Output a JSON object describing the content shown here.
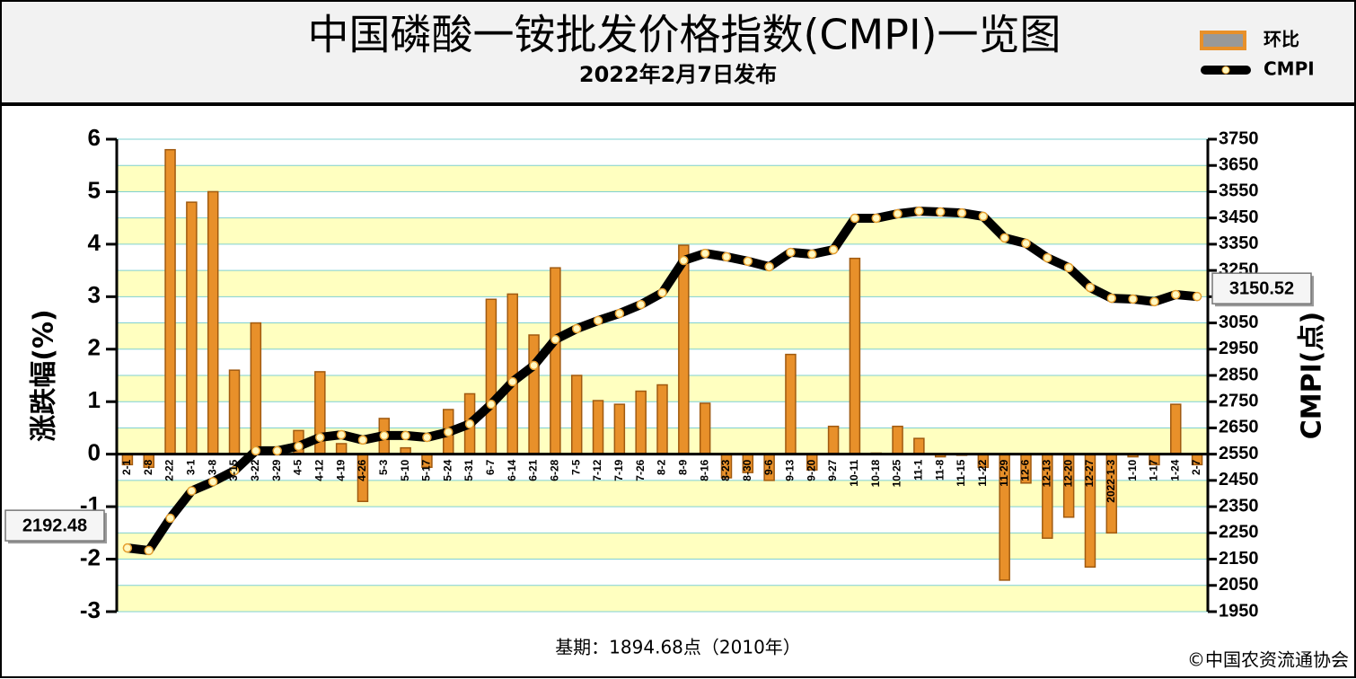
{
  "chart_data": {
    "type": "bar",
    "title": "中国磷酸一铵批发价格指数(CMPI)一览图",
    "subtitle": "2022年2月7日发布",
    "y_label": "涨跌幅(%)",
    "y2_label": "CMPI(点)",
    "footnote": "基期：1894.68点（2010年）",
    "source": "©中国农资流通协会",
    "categories": [
      "2-1",
      "2-8",
      "2-22",
      "3-1",
      "3-8",
      "3-15",
      "3-22",
      "3-29",
      "4-5",
      "4-12",
      "4-19",
      "4-26",
      "5-3",
      "5-10",
      "5-17",
      "5-24",
      "5-31",
      "6-7",
      "6-14",
      "6-21",
      "6-28",
      "7-5",
      "7-12",
      "7-19",
      "7-26",
      "8-2",
      "8-9",
      "8-16",
      "8-23",
      "8-30",
      "9-6",
      "9-13",
      "9-20",
      "9-27",
      "10-11",
      "10-18",
      "10-25",
      "11-1",
      "11-8",
      "11-15",
      "11-22",
      "11-29",
      "12-6",
      "12-13",
      "12-20",
      "12-27",
      "2022-1-3",
      "1-10",
      "1-17",
      "1-24",
      "2-7"
    ],
    "series": [
      {
        "name": "环比",
        "type": "bar",
        "axis": "y",
        "color": "#e8902a",
        "values": [
          -0.2,
          -0.25,
          5.8,
          4.8,
          5.0,
          1.6,
          2.5,
          0.02,
          0.45,
          1.57,
          0.2,
          -0.9,
          0.68,
          0.12,
          -0.25,
          0.85,
          1.15,
          2.95,
          3.05,
          2.27,
          3.55,
          1.5,
          1.02,
          0.95,
          1.2,
          1.32,
          3.98,
          0.97,
          -0.45,
          -0.35,
          -0.5,
          1.9,
          -0.3,
          0.53,
          3.73,
          0.02,
          0.53,
          0.3,
          -0.05,
          -0.02,
          -0.25,
          -2.4,
          -0.55,
          -1.6,
          -1.2,
          -2.15,
          -1.5,
          -0.05,
          -0.2,
          0.95,
          -0.2
        ]
      },
      {
        "name": "CMPI",
        "type": "line",
        "axis": "y2",
        "color": "#000000",
        "values": [
          2192.48,
          2183,
          2306,
          2410,
          2445,
          2487,
          2563,
          2563,
          2580,
          2614,
          2624,
          2604,
          2621,
          2621,
          2614,
          2634,
          2665,
          2740,
          2826,
          2888,
          2987,
          3028,
          3059,
          3086,
          3120,
          3165,
          3288,
          3315,
          3302,
          3285,
          3264,
          3319,
          3312,
          3329,
          3449,
          3449,
          3466,
          3476,
          3473,
          3469,
          3456,
          3374,
          3353,
          3298,
          3261,
          3185,
          3144,
          3141,
          3131,
          3158,
          3150.52
        ]
      }
    ],
    "ylim": [
      -3,
      6
    ],
    "yticks": [
      -3,
      -2,
      -1,
      0,
      1,
      2,
      3,
      4,
      5,
      6
    ],
    "y2lim": [
      1950,
      3750
    ],
    "y2ticks": [
      1950,
      2050,
      2150,
      2250,
      2350,
      2450,
      2550,
      2650,
      2750,
      2850,
      2950,
      3050,
      3150,
      3250,
      3350,
      3450,
      3550,
      3650,
      3750
    ],
    "grid": true,
    "legend": "top-right"
  }
}
